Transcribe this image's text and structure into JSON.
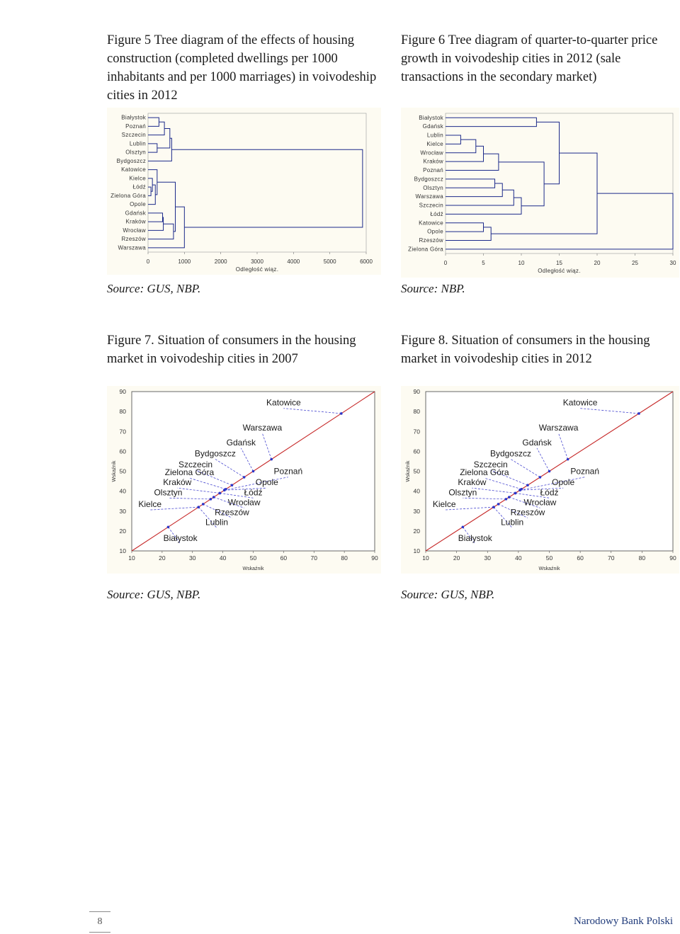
{
  "figures": {
    "fig5": {
      "caption": "Figure 5 Tree diagram of the effects of housing construction (completed dwellings per 1000 inhabitants and per 1000 marriages) in voivodeship cities in 2012",
      "source": "Source: GUS, NBP."
    },
    "fig6": {
      "caption": "Figure 6 Tree diagram of quarter-to-quarter price growth in voivodeship cities in 2012 (sale transactions in the secondary market)",
      "source": "Source: NBP."
    },
    "fig7": {
      "caption": "Figure 7. Situation of consumers in the housing market in voivodeship cities in 2007",
      "source": "Source: GUS, NBP."
    },
    "fig8": {
      "caption": "Figure 8. Situation of consumers in the housing market in voivodeship cities in 2012",
      "source": "Source: GUS, NBP."
    }
  },
  "footer": {
    "page_number": "8",
    "publisher": "Narodowy Bank Polski"
  },
  "colors": {
    "plot_bg": "#fdfbf2",
    "tree_line": "#1c2a8a",
    "diagonal": "#c62828",
    "points": "#2b35c8",
    "leader": "#4a4ad0"
  },
  "chart_data": [
    {
      "type": "dendrogram",
      "leaves": [
        "Białystok",
        "Poznań",
        "Szczecin",
        "Lublin",
        "Olsztyn",
        "Bydgoszcz",
        "Katowice",
        "Kielce",
        "Łódź",
        "Zielona Góra",
        "Opole",
        "Gdańsk",
        "Kraków",
        "Wrocław",
        "Rzeszów",
        "Warszawa"
      ],
      "xlabel": "Odległość wiąz.",
      "xlim": [
        0,
        6000
      ],
      "xticks": [
        0,
        1000,
        2000,
        3000,
        4000,
        5000,
        6000
      ],
      "merges": [
        {
          "a": 0,
          "b": 1,
          "height": 300
        },
        {
          "a": 16,
          "b": 2,
          "height": 450
        },
        {
          "a": 3,
          "b": 4,
          "height": 250
        },
        {
          "a": 17,
          "b": 18,
          "height": 600
        },
        {
          "a": 19,
          "b": 5,
          "height": 650
        },
        {
          "a": 8,
          "b": 9,
          "height": 80
        },
        {
          "a": 7,
          "b": 21,
          "height": 120
        },
        {
          "a": 22,
          "b": 10,
          "height": 200
        },
        {
          "a": 6,
          "b": 23,
          "height": 250
        },
        {
          "a": 11,
          "b": 12,
          "height": 400
        },
        {
          "a": 25,
          "b": 13,
          "height": 420
        },
        {
          "a": 26,
          "b": 14,
          "height": 700
        },
        {
          "a": 24,
          "b": 27,
          "height": 750
        },
        {
          "a": 28,
          "b": 15,
          "height": 1000
        },
        {
          "a": 20,
          "b": 29,
          "height": 5900
        }
      ]
    },
    {
      "type": "dendrogram",
      "leaves": [
        "Białystok",
        "Gdańsk",
        "Lublin",
        "Kielce",
        "Wrocław",
        "Kraków",
        "Poznań",
        "Bydgoszcz",
        "Olsztyn",
        "Warszawa",
        "Szczecin",
        "Łódź",
        "Katowice",
        "Opole",
        "Rzeszów",
        "Zielona Góra"
      ],
      "xlabel": "Odległość wiąz.",
      "xlim": [
        0,
        30
      ],
      "xticks": [
        0,
        5,
        10,
        15,
        20,
        25,
        30
      ],
      "merges": [
        {
          "a": 0,
          "b": 1,
          "height": 12
        },
        {
          "a": 2,
          "b": 3,
          "height": 2
        },
        {
          "a": 17,
          "b": 4,
          "height": 4
        },
        {
          "a": 18,
          "b": 5,
          "height": 5
        },
        {
          "a": 19,
          "b": 6,
          "height": 7
        },
        {
          "a": 7,
          "b": 8,
          "height": 6.5
        },
        {
          "a": 21,
          "b": 9,
          "height": 7.5
        },
        {
          "a": 22,
          "b": 10,
          "height": 9
        },
        {
          "a": 23,
          "b": 11,
          "height": 10
        },
        {
          "a": 20,
          "b": 24,
          "height": 13
        },
        {
          "a": 16,
          "b": 25,
          "height": 15
        },
        {
          "a": 12,
          "b": 13,
          "height": 5
        },
        {
          "a": 27,
          "b": 14,
          "height": 6
        },
        {
          "a": 26,
          "b": 28,
          "height": 20
        },
        {
          "a": 29,
          "b": 15,
          "height": 30
        }
      ]
    },
    {
      "type": "scatter",
      "xlabel": "Wskaźnik",
      "ylabel": "Wskaźnik",
      "xlim": [
        10,
        90
      ],
      "ylim": [
        10,
        90
      ],
      "xticks": [
        10,
        20,
        30,
        40,
        50,
        60,
        70,
        80,
        90
      ],
      "yticks": [
        10,
        20,
        30,
        40,
        50,
        60,
        70,
        80,
        90
      ],
      "diagonal": true,
      "points": [
        {
          "label": "Katowice",
          "x": 79,
          "y": 79,
          "lx": 60,
          "ly": 83
        },
        {
          "label": "Warszawa",
          "x": 56,
          "y": 56,
          "lx": 53,
          "ly": 70.5
        },
        {
          "label": "Gdańsk",
          "x": 50,
          "y": 50,
          "lx": 46,
          "ly": 63
        },
        {
          "label": "Bydgoszcz",
          "x": 47,
          "y": 47,
          "lx": 37.5,
          "ly": 57.5
        },
        {
          "label": "Szczecin",
          "x": 43,
          "y": 43,
          "lx": 31,
          "ly": 52
        },
        {
          "label": "Zielona Góra",
          "x": 41,
          "y": 41,
          "lx": 29,
          "ly": 48
        },
        {
          "label": "Kraków",
          "x": 39,
          "y": 39,
          "lx": 25,
          "ly": 43
        },
        {
          "label": "Poznań",
          "x": 40.5,
          "y": 40.5,
          "lx": 61.5,
          "ly": 48.5
        },
        {
          "label": "Opole",
          "x": 40.5,
          "y": 40.5,
          "lx": 54.5,
          "ly": 43
        },
        {
          "label": "Olsztyn",
          "x": 36,
          "y": 36,
          "lx": 22,
          "ly": 38
        },
        {
          "label": "Łódź",
          "x": 39,
          "y": 39,
          "lx": 50,
          "ly": 38
        },
        {
          "label": "Wrocław",
          "x": 37,
          "y": 37,
          "lx": 47,
          "ly": 33
        },
        {
          "label": "Kielce",
          "x": 32,
          "y": 32,
          "lx": 16,
          "ly": 32
        },
        {
          "label": "Rzeszów",
          "x": 33.5,
          "y": 33.5,
          "lx": 43,
          "ly": 28
        },
        {
          "label": "Lublin",
          "x": 32,
          "y": 32,
          "lx": 38,
          "ly": 23
        },
        {
          "label": "Białystok",
          "x": 22,
          "y": 22,
          "lx": 26,
          "ly": 15
        }
      ]
    },
    {
      "type": "scatter",
      "xlabel": "Wskaźnik",
      "ylabel": "Wskaźnik",
      "xlim": [
        10,
        90
      ],
      "ylim": [
        10,
        90
      ],
      "xticks": [
        10,
        20,
        30,
        40,
        50,
        60,
        70,
        80,
        90
      ],
      "yticks": [
        10,
        20,
        30,
        40,
        50,
        60,
        70,
        80,
        90
      ],
      "diagonal": true,
      "points": [
        {
          "label": "Katowice",
          "x": 79,
          "y": 79,
          "lx": 60,
          "ly": 83
        },
        {
          "label": "Warszawa",
          "x": 56,
          "y": 56,
          "lx": 53,
          "ly": 70.5
        },
        {
          "label": "Gdańsk",
          "x": 50,
          "y": 50,
          "lx": 46,
          "ly": 63
        },
        {
          "label": "Bydgoszcz",
          "x": 47,
          "y": 47,
          "lx": 37.5,
          "ly": 57.5
        },
        {
          "label": "Szczecin",
          "x": 43,
          "y": 43,
          "lx": 31,
          "ly": 52
        },
        {
          "label": "Zielona Góra",
          "x": 41,
          "y": 41,
          "lx": 29,
          "ly": 48
        },
        {
          "label": "Kraków",
          "x": 39,
          "y": 39,
          "lx": 25,
          "ly": 43
        },
        {
          "label": "Poznań",
          "x": 40.5,
          "y": 40.5,
          "lx": 61.5,
          "ly": 48.5
        },
        {
          "label": "Opole",
          "x": 40.5,
          "y": 40.5,
          "lx": 54.5,
          "ly": 43
        },
        {
          "label": "Olsztyn",
          "x": 36,
          "y": 36,
          "lx": 22,
          "ly": 38
        },
        {
          "label": "Łódź",
          "x": 39,
          "y": 39,
          "lx": 50,
          "ly": 38
        },
        {
          "label": "Wrocław",
          "x": 37,
          "y": 37,
          "lx": 47,
          "ly": 33
        },
        {
          "label": "Kielce",
          "x": 32,
          "y": 32,
          "lx": 16,
          "ly": 32
        },
        {
          "label": "Rzeszów",
          "x": 33.5,
          "y": 33.5,
          "lx": 43,
          "ly": 28
        },
        {
          "label": "Lublin",
          "x": 32,
          "y": 32,
          "lx": 38,
          "ly": 23
        },
        {
          "label": "Białystok",
          "x": 22,
          "y": 22,
          "lx": 26,
          "ly": 15
        }
      ]
    }
  ]
}
